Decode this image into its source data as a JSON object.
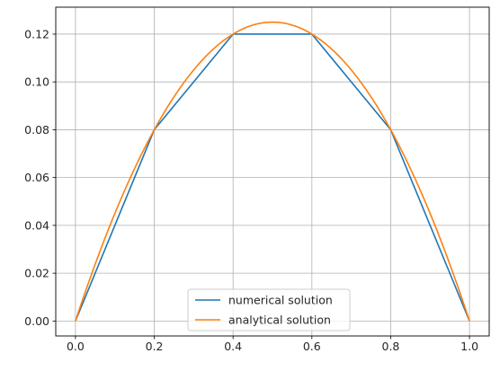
{
  "chart_data": {
    "type": "line",
    "title": "",
    "xlabel": "",
    "ylabel": "",
    "xlim": [
      -0.05,
      1.05
    ],
    "ylim": [
      -0.00625,
      0.13125
    ],
    "xticks": [
      0.0,
      0.2,
      0.4,
      0.6,
      0.8,
      1.0
    ],
    "xtick_labels": [
      "0.0",
      "0.2",
      "0.4",
      "0.6",
      "0.8",
      "1.0"
    ],
    "yticks": [
      0.0,
      0.02,
      0.04,
      0.06,
      0.08,
      0.1,
      0.12
    ],
    "ytick_labels": [
      "0.00",
      "0.02",
      "0.04",
      "0.06",
      "0.08",
      "0.10",
      "0.12"
    ],
    "grid": true,
    "legend_position": "bottom-center",
    "series": [
      {
        "name": "numerical solution",
        "color": "#1f77b4",
        "x": [
          0.0,
          0.2,
          0.4,
          0.6,
          0.8,
          1.0
        ],
        "y": [
          0.0,
          0.08,
          0.12,
          0.12,
          0.08,
          0.0
        ]
      },
      {
        "name": "analytical solution",
        "color": "#ff7f0e",
        "function": "x(1-x)/2",
        "x": [
          0.0,
          0.05,
          0.1,
          0.15,
          0.2,
          0.25,
          0.3,
          0.35,
          0.4,
          0.45,
          0.5,
          0.55,
          0.6,
          0.65,
          0.7,
          0.75,
          0.8,
          0.85,
          0.9,
          0.95,
          1.0
        ],
        "y": [
          0.0,
          0.02375,
          0.045,
          0.06375,
          0.08,
          0.09375,
          0.105,
          0.11375,
          0.12,
          0.12375,
          0.125,
          0.12375,
          0.12,
          0.11375,
          0.105,
          0.09375,
          0.08,
          0.06375,
          0.045,
          0.02375,
          0.0
        ]
      }
    ]
  }
}
